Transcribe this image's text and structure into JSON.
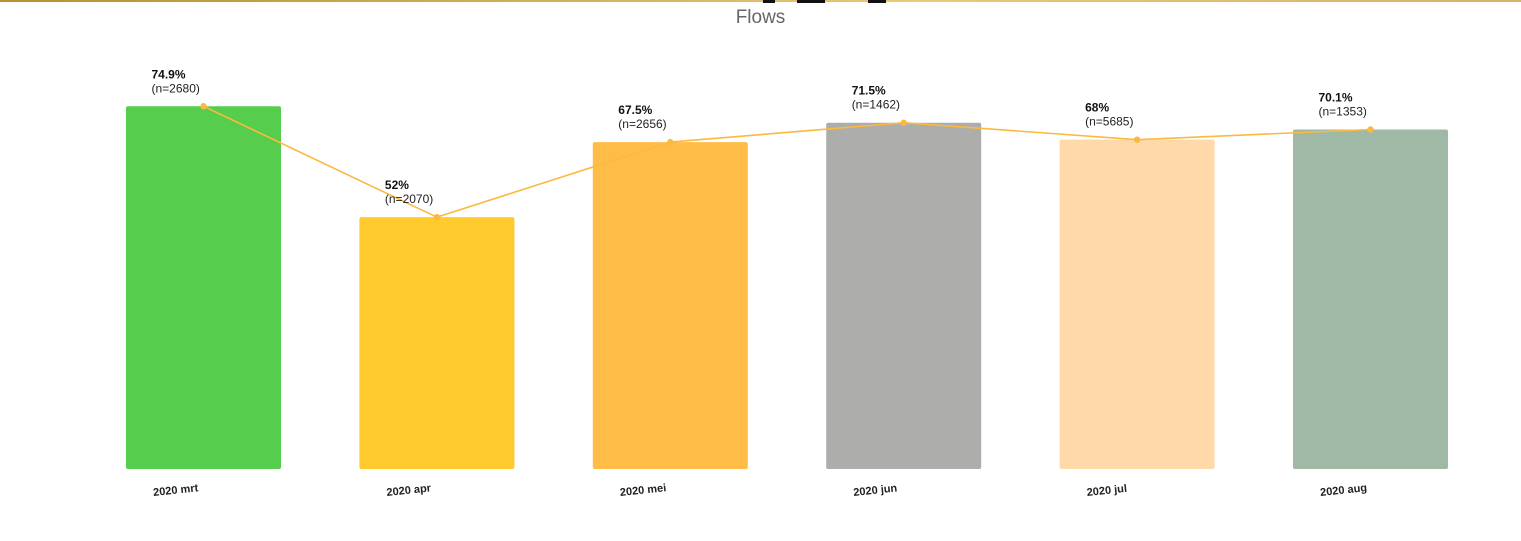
{
  "chart_data": {
    "type": "bar",
    "title": "Flows",
    "categories": [
      "2020 mrt",
      "2020 apr",
      "2020 mei",
      "2020 jun",
      "2020 jul",
      "2020 aug"
    ],
    "values": [
      74.9,
      52,
      67.5,
      71.5,
      68,
      70.1
    ],
    "value_labels": [
      "74.9%",
      "52%",
      "67.5%",
      "71.5%",
      "68%",
      "70.1%"
    ],
    "counts": [
      "(n=2680)",
      "(n=2070)",
      "(n=2656)",
      "(n=1462)",
      "(n=5685)",
      "(n=1353)"
    ],
    "bar_colors": [
      "#56cd4d",
      "#ffca2c",
      "#ffbc47",
      "#adadab",
      "#ffd9a9",
      "#a0b9a7"
    ],
    "line_overlay": {
      "values": [
        74.9,
        52,
        67.5,
        71.5,
        68,
        70.1
      ],
      "color": "#fbb93d"
    },
    "ylim": [
      0,
      100
    ],
    "grid": false,
    "legend": "none"
  }
}
